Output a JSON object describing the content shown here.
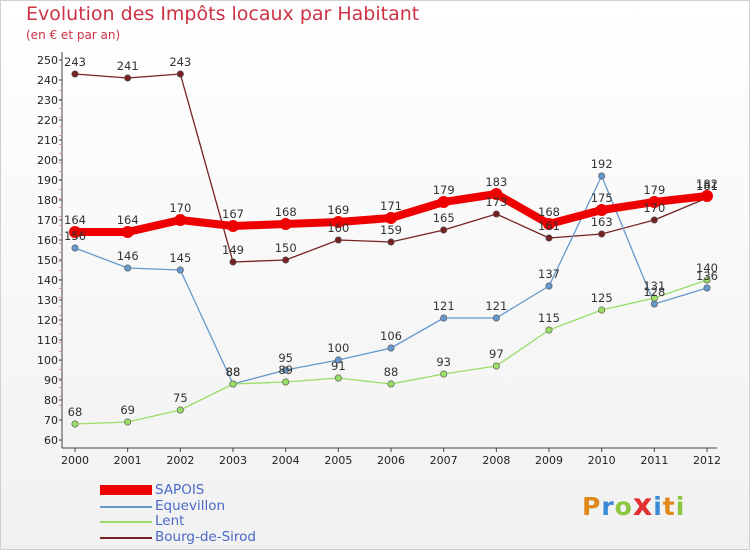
{
  "header": {
    "title": "Evolution des Impôts locaux par Habitant",
    "subtitle": "(en € et par an)"
  },
  "brand": {
    "text": "Proxiti",
    "colors": [
      "#e08a1e",
      "#3a8ad8",
      "#8cc63e",
      "#e03030",
      "#3a8ad8",
      "#e08a1e",
      "#8cc63e"
    ]
  },
  "chart_data": {
    "type": "line",
    "title": "Evolution des Impôts locaux par Habitant",
    "subtitle": "(en € et par an)",
    "xlabel": "",
    "ylabel": "",
    "ylim": [
      60,
      250
    ],
    "yticks": [
      60,
      70,
      80,
      90,
      100,
      110,
      120,
      130,
      140,
      150,
      160,
      170,
      180,
      190,
      200,
      210,
      220,
      230,
      240,
      250
    ],
    "grid": false,
    "legend_position": "bottom-left",
    "categories": [
      "2000",
      "2001",
      "2002",
      "2003",
      "2004",
      "2005",
      "2006",
      "2007",
      "2008",
      "2009",
      "2010",
      "2011",
      "2012"
    ],
    "series": [
      {
        "name": "SAPOIS",
        "color": "#ee0000",
        "values": [
          164,
          164,
          170,
          167,
          168,
          169,
          171,
          179,
          183,
          168,
          175,
          179,
          182
        ],
        "labels": [
          "164",
          "164",
          "170",
          "167",
          "168",
          "169",
          "171",
          "179",
          "183",
          "168",
          "175",
          "179",
          "182"
        ]
      },
      {
        "name": "Equevillon",
        "color": "#6699cc",
        "values": [
          156,
          146,
          145,
          88,
          95,
          100,
          106,
          121,
          121,
          137,
          192,
          128,
          136
        ],
        "labels": [
          "156",
          "146",
          "145",
          "88",
          "95",
          "100",
          "106",
          "121",
          "121",
          "137",
          "192",
          "128",
          "136"
        ]
      },
      {
        "name": "Lent",
        "color": "#99dd66",
        "values": [
          68,
          69,
          75,
          88,
          89,
          91,
          88,
          93,
          97,
          115,
          125,
          131,
          140
        ],
        "labels": [
          "68",
          "69",
          "75",
          "88",
          "89",
          "91",
          "88",
          "93",
          "97",
          "115",
          "125",
          "131",
          "140"
        ]
      },
      {
        "name": "Bourg-de-Sirod",
        "color": "#772222",
        "values": [
          243,
          241,
          243,
          149,
          150,
          160,
          159,
          165,
          173,
          161,
          163,
          170,
          181
        ],
        "labels": [
          "243",
          "241",
          "243",
          "149",
          "150",
          "160",
          "159",
          "165",
          "173",
          "161",
          "163",
          "170",
          "181"
        ]
      }
    ]
  }
}
